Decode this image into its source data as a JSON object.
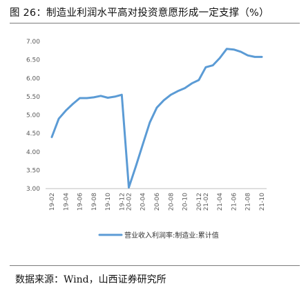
{
  "figure": {
    "title": "图 26：制造业利润水平高对投资意愿形成一定支撑（%）",
    "source": "数据来源：Wind，山西证券研究所"
  },
  "chart_data": {
    "type": "line",
    "title": "",
    "xlabel": "",
    "ylabel": "",
    "ylim": [
      3.0,
      7.0
    ],
    "yticks": [
      "7.00",
      "6.50",
      "6.00",
      "5.50",
      "5.00",
      "4.50",
      "4.00",
      "3.50",
      "3.00"
    ],
    "x_tick_labels": [
      "19-02",
      "19-04",
      "19-06",
      "19-08",
      "19-10",
      "19-12",
      "20-02",
      "20-04",
      "20-06",
      "20-08",
      "20-10",
      "20-12",
      "21-02",
      "21-04",
      "21-06",
      "21-08",
      "21-10"
    ],
    "x": [
      "19-02",
      "19-03",
      "19-04",
      "19-05",
      "19-06",
      "19-07",
      "19-08",
      "19-09",
      "19-10",
      "19-11",
      "19-12",
      "20-02",
      "20-03",
      "20-04",
      "20-05",
      "20-06",
      "20-07",
      "20-08",
      "20-09",
      "20-10",
      "20-11",
      "20-12",
      "21-02",
      "21-03",
      "21-04",
      "21-05",
      "21-06",
      "21-07",
      "21-08",
      "21-09",
      "21-10"
    ],
    "series": [
      {
        "name": "营业收入利润率:制造业:累计值",
        "color": "#5b9bd5",
        "values": [
          4.4,
          4.9,
          5.12,
          5.3,
          5.46,
          5.46,
          5.48,
          5.52,
          5.47,
          5.5,
          5.55,
          3.03,
          3.6,
          4.2,
          4.8,
          5.2,
          5.4,
          5.55,
          5.65,
          5.73,
          5.86,
          5.95,
          6.3,
          6.35,
          6.55,
          6.8,
          6.78,
          6.72,
          6.62,
          6.58,
          6.58
        ]
      }
    ],
    "grid": false,
    "legend_position": "bottom"
  }
}
